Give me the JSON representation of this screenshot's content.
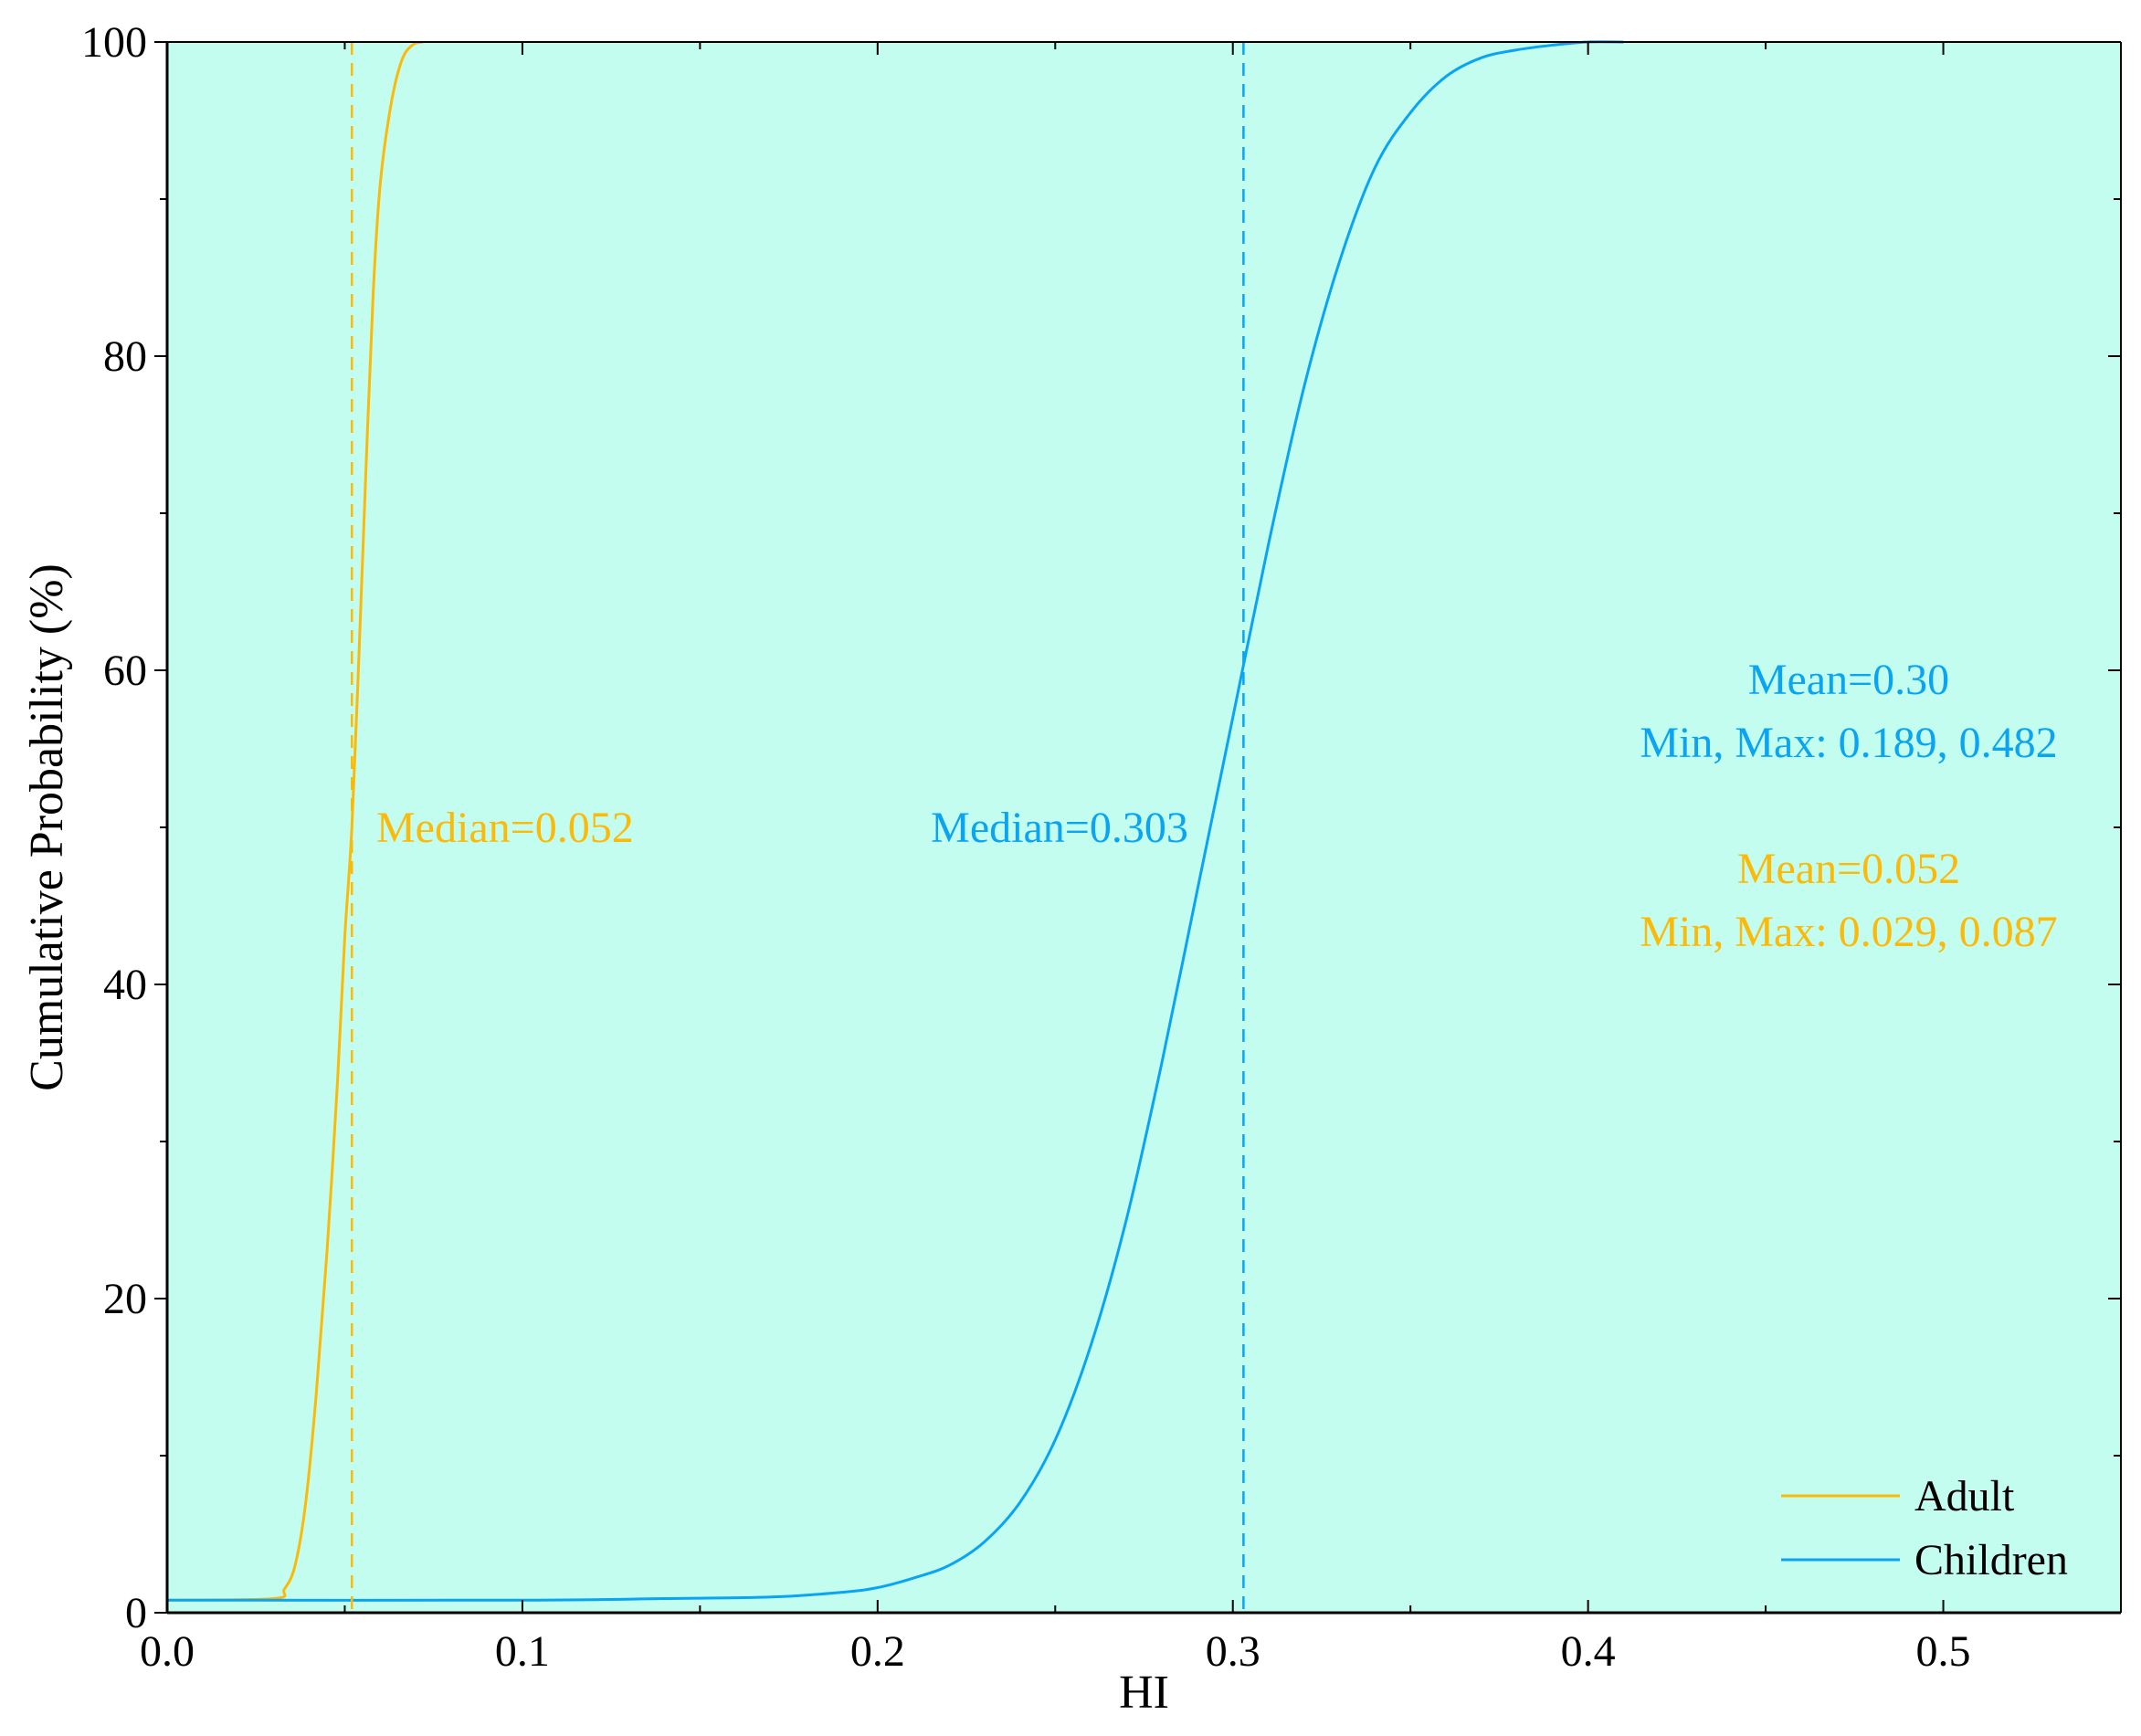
{
  "colors": {
    "plot_background": "#c2fdf0",
    "adult": "#fbb908",
    "children": "#0aa4f0",
    "axis": "#000000"
  },
  "chart_data": {
    "type": "line",
    "title": "",
    "xlabel": "HI",
    "ylabel": "Cumulative Probability (%)",
    "xlim": [
      0.0,
      0.55
    ],
    "ylim": [
      0,
      100
    ],
    "x_ticks": [
      0.0,
      0.1,
      0.2,
      0.3,
      0.4,
      0.5
    ],
    "x_tick_labels": [
      "0.0",
      "0.1",
      "0.2",
      "0.3",
      "0.4",
      "0.5"
    ],
    "x_minor_ticks": [
      0.05,
      0.15,
      0.25,
      0.35,
      0.45,
      0.55
    ],
    "y_ticks": [
      0,
      20,
      40,
      60,
      80,
      100
    ],
    "y_tick_labels": [
      "0",
      "20",
      "40",
      "60",
      "80",
      "100"
    ],
    "y_minor_ticks": [
      10,
      30,
      50,
      70,
      90
    ],
    "grid": false,
    "legend_position": "bottom-right",
    "series": [
      {
        "name": "Adult",
        "color": "#fbb908",
        "x": [
          0.0,
          0.03,
          0.033,
          0.036,
          0.039,
          0.042,
          0.045,
          0.048,
          0.05,
          0.052,
          0.054,
          0.056,
          0.058,
          0.06,
          0.063,
          0.066,
          0.069,
          0.072
        ],
        "y": [
          0.8,
          0.9,
          1.5,
          3,
          7,
          14,
          23,
          34,
          43,
          50,
          61,
          73,
          84,
          91,
          96,
          98.8,
          99.8,
          100
        ]
      },
      {
        "name": "Children",
        "color": "#0aa4f0",
        "x": [
          0.0,
          0.1,
          0.14,
          0.17,
          0.19,
          0.2,
          0.21,
          0.22,
          0.23,
          0.24,
          0.25,
          0.26,
          0.27,
          0.28,
          0.29,
          0.3,
          0.31,
          0.32,
          0.33,
          0.34,
          0.35,
          0.36,
          0.37,
          0.38,
          0.39,
          0.4,
          0.41
        ],
        "y": [
          0.8,
          0.8,
          0.9,
          1.0,
          1.3,
          1.6,
          2.2,
          3.0,
          4.5,
          7.0,
          11.0,
          17.0,
          25.0,
          35.0,
          46.0,
          57.0,
          68.0,
          78.0,
          86.0,
          92.0,
          95.5,
          97.8,
          99.0,
          99.5,
          99.8,
          100.0,
          100.0
        ]
      }
    ],
    "reference_lines": [
      {
        "series": "Adult",
        "x": 0.052,
        "style": "dashed"
      },
      {
        "series": "Children",
        "x": 0.303,
        "style": "dashed"
      }
    ],
    "annotations": {
      "adult_median": "Median=0.052",
      "children_median": "Median=0.303",
      "children_mean": "Mean=0.30",
      "children_minmax": "Min, Max: 0.189, 0.482",
      "adult_mean": "Mean=0.052",
      "adult_minmax": "Min, Max: 0.029, 0.087"
    },
    "legend": [
      "Adult",
      "Children"
    ]
  }
}
